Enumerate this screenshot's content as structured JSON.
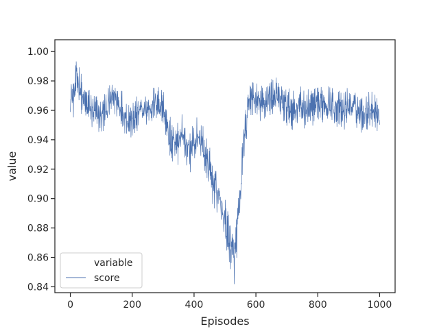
{
  "chart_data": {
    "type": "line",
    "xlabel": "Episodes",
    "ylabel": "value",
    "xlim": [
      -50,
      1050
    ],
    "ylim": [
      0.836,
      1.008
    ],
    "xticks": [
      0,
      200,
      400,
      600,
      800,
      1000
    ],
    "yticks": [
      0.84,
      0.86,
      0.88,
      0.9,
      0.92,
      0.94,
      0.96,
      0.98,
      1.0
    ],
    "grid": false,
    "legend": {
      "placement": "lower-left",
      "title": "variable",
      "entries": [
        "score"
      ]
    },
    "series": [
      {
        "name": "score",
        "color": "#4c72b0",
        "x": [
          0,
          10,
          20,
          30,
          40,
          60,
          80,
          100,
          120,
          130,
          140,
          160,
          180,
          200,
          220,
          240,
          260,
          280,
          300,
          320,
          340,
          360,
          380,
          400,
          420,
          440,
          460,
          480,
          500,
          520,
          530,
          540,
          550,
          560,
          570,
          580,
          600,
          620,
          640,
          660,
          680,
          700,
          720,
          740,
          760,
          780,
          800,
          820,
          840,
          860,
          880,
          900,
          920,
          940,
          960,
          980,
          1000
        ],
        "y": [
          0.972,
          0.968,
          0.982,
          0.978,
          0.966,
          0.962,
          0.958,
          0.956,
          0.962,
          0.966,
          0.97,
          0.964,
          0.956,
          0.952,
          0.958,
          0.96,
          0.962,
          0.966,
          0.962,
          0.94,
          0.934,
          0.946,
          0.932,
          0.938,
          0.942,
          0.926,
          0.912,
          0.902,
          0.884,
          0.866,
          0.858,
          0.88,
          0.9,
          0.94,
          0.95,
          0.97,
          0.966,
          0.964,
          0.968,
          0.97,
          0.966,
          0.962,
          0.96,
          0.964,
          0.96,
          0.962,
          0.962,
          0.966,
          0.964,
          0.962,
          0.958,
          0.964,
          0.962,
          0.958,
          0.96,
          0.962,
          0.956
        ]
      }
    ]
  }
}
